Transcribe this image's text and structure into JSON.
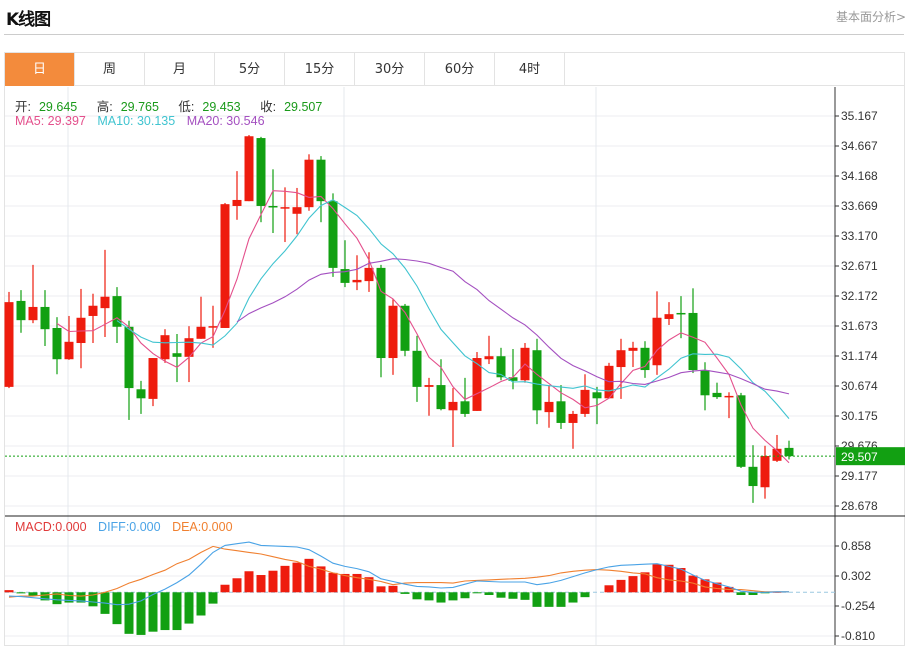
{
  "header": {
    "title": "K线图",
    "link": "基本面分析>"
  },
  "tabs": [
    {
      "label": "日",
      "active": true
    },
    {
      "label": "周",
      "active": false
    },
    {
      "label": "月",
      "active": false
    },
    {
      "label": "5分",
      "active": false
    },
    {
      "label": "15分",
      "active": false
    },
    {
      "label": "30分",
      "active": false
    },
    {
      "label": "60分",
      "active": false
    },
    {
      "label": "4时",
      "active": false
    }
  ],
  "ohlc_legend": {
    "open_label": "开:",
    "open": "29.645",
    "high_label": "高:",
    "high": "29.765",
    "low_label": "低:",
    "low": "29.453",
    "close_label": "收:",
    "close": "29.507"
  },
  "ma_legend": {
    "ma5": "MA5: 29.397",
    "ma10": "MA10: 30.135",
    "ma20": "MA20: 30.546"
  },
  "macd_legend": {
    "macd": "MACD:0.000",
    "diff": "DIFF:0.000",
    "dea": "DEA:0.000"
  },
  "colors": {
    "up": "#ee1c0e",
    "down": "#12a012",
    "ma5": "#e4508c",
    "ma10": "#40c4d0",
    "ma20": "#a450c0",
    "diff": "#4aa3e6",
    "dea": "#f08030",
    "active_tab": "#f38b3c",
    "last_price_bg": "#12a012"
  },
  "chart_data": [
    {
      "type": "candlestick",
      "title": "",
      "price_ticks": [
        "35.167",
        "34.667",
        "34.168",
        "33.669",
        "33.170",
        "32.671",
        "32.172",
        "31.673",
        "31.174",
        "30.674",
        "30.175",
        "29.676",
        "29.177",
        "28.678"
      ],
      "ylim": [
        28.678,
        35.167
      ],
      "grid": true,
      "last_price": "29.507",
      "ma_periods": [
        5,
        10,
        20
      ],
      "candles_ohlc": [
        [
          30.66,
          32.24,
          30.64,
          32.07
        ],
        [
          32.09,
          32.27,
          31.56,
          31.77
        ],
        [
          31.77,
          32.69,
          31.72,
          31.99
        ],
        [
          31.99,
          32.27,
          31.34,
          31.62
        ],
        [
          31.64,
          31.82,
          30.87,
          31.12
        ],
        [
          31.12,
          31.84,
          31.11,
          31.41
        ],
        [
          31.39,
          32.29,
          30.97,
          31.81
        ],
        [
          31.84,
          32.21,
          31.39,
          32.01
        ],
        [
          31.97,
          32.94,
          31.49,
          32.16
        ],
        [
          32.17,
          32.32,
          31.39,
          31.66
        ],
        [
          31.66,
          31.76,
          30.11,
          30.64
        ],
        [
          30.62,
          30.76,
          30.21,
          30.47
        ],
        [
          30.46,
          31.14,
          30.34,
          31.14
        ],
        [
          31.12,
          31.62,
          31.06,
          31.52
        ],
        [
          31.22,
          31.54,
          30.74,
          31.16
        ],
        [
          31.16,
          31.67,
          30.74,
          31.47
        ],
        [
          31.46,
          32.16,
          31.46,
          31.66
        ],
        [
          31.66,
          32.01,
          31.31,
          31.67
        ],
        [
          31.64,
          33.72,
          31.64,
          33.7
        ],
        [
          33.67,
          34.25,
          33.44,
          33.77
        ],
        [
          33.75,
          34.85,
          33.75,
          34.83
        ],
        [
          34.8,
          34.82,
          33.4,
          33.67
        ],
        [
          33.67,
          34.28,
          33.22,
          33.65
        ],
        [
          33.64,
          33.98,
          33.07,
          33.65
        ],
        [
          33.54,
          33.97,
          33.2,
          33.65
        ],
        [
          33.65,
          34.53,
          33.59,
          34.44
        ],
        [
          34.44,
          34.5,
          33.4,
          33.75
        ],
        [
          33.75,
          33.88,
          32.49,
          32.64
        ],
        [
          32.62,
          33.1,
          32.32,
          32.39
        ],
        [
          32.4,
          32.85,
          32.27,
          32.44
        ],
        [
          32.42,
          32.9,
          32.24,
          32.64
        ],
        [
          32.64,
          32.69,
          30.82,
          31.14
        ],
        [
          31.14,
          32.12,
          30.86,
          32.01
        ],
        [
          32.01,
          32.04,
          31.17,
          31.26
        ],
        [
          31.26,
          31.51,
          30.41,
          30.66
        ],
        [
          30.66,
          30.81,
          30.18,
          30.69
        ],
        [
          30.69,
          31.12,
          30.27,
          30.29
        ],
        [
          30.27,
          30.64,
          29.66,
          30.41
        ],
        [
          30.42,
          30.81,
          30.16,
          30.21
        ],
        [
          30.26,
          31.24,
          30.26,
          31.14
        ],
        [
          31.12,
          31.51,
          31.04,
          31.17
        ],
        [
          31.17,
          31.31,
          30.77,
          30.82
        ],
        [
          30.82,
          31.29,
          30.62,
          30.76
        ],
        [
          30.77,
          31.39,
          30.73,
          31.31
        ],
        [
          31.27,
          31.46,
          30.04,
          30.27
        ],
        [
          30.24,
          30.69,
          29.98,
          30.41
        ],
        [
          30.42,
          30.69,
          29.96,
          30.06
        ],
        [
          30.06,
          30.26,
          29.63,
          30.21
        ],
        [
          30.21,
          30.87,
          30.16,
          30.61
        ],
        [
          30.57,
          30.66,
          30.04,
          30.47
        ],
        [
          30.47,
          31.06,
          30.47,
          31.01
        ],
        [
          30.99,
          31.46,
          30.46,
          31.27
        ],
        [
          31.26,
          31.41,
          30.99,
          31.31
        ],
        [
          31.31,
          31.42,
          30.81,
          30.94
        ],
        [
          31.02,
          32.25,
          30.86,
          31.81
        ],
        [
          31.79,
          32.07,
          31.69,
          31.87
        ],
        [
          31.89,
          32.17,
          31.47,
          31.87
        ],
        [
          31.89,
          32.3,
          30.89,
          30.94
        ],
        [
          30.94,
          31.07,
          30.27,
          30.52
        ],
        [
          30.56,
          30.73,
          30.46,
          30.49
        ],
        [
          30.49,
          30.57,
          30.14,
          30.51
        ],
        [
          30.52,
          30.56,
          29.31,
          29.33
        ],
        [
          29.33,
          29.69,
          28.73,
          29.01
        ],
        [
          28.99,
          29.68,
          28.8,
          29.51
        ],
        [
          29.43,
          29.86,
          29.41,
          29.63
        ],
        [
          29.645,
          29.765,
          29.453,
          29.507
        ]
      ]
    },
    {
      "type": "bar+line",
      "title": "",
      "ticks": [
        "0.858",
        "0.302",
        "-0.254",
        "-0.810"
      ],
      "ylim": [
        -0.81,
        0.858
      ],
      "macd": [
        0.04,
        -0.02,
        -0.06,
        -0.15,
        -0.22,
        -0.19,
        -0.19,
        -0.26,
        -0.4,
        -0.59,
        -0.77,
        -0.79,
        -0.73,
        -0.7,
        -0.7,
        -0.58,
        -0.43,
        -0.21,
        0.14,
        0.26,
        0.39,
        0.32,
        0.4,
        0.49,
        0.55,
        0.62,
        0.48,
        0.36,
        0.34,
        0.34,
        0.28,
        0.11,
        0.12,
        -0.03,
        -0.13,
        -0.15,
        -0.19,
        -0.15,
        -0.11,
        -0.01,
        -0.05,
        -0.1,
        -0.12,
        -0.14,
        -0.27,
        -0.27,
        -0.27,
        -0.19,
        -0.09,
        0,
        0.13,
        0.23,
        0.3,
        0.37,
        0.52,
        0.51,
        0.45,
        0.31,
        0.24,
        0.18,
        0.1,
        -0.05,
        -0.05,
        -0.01,
        0.01,
        0
      ],
      "diff": [
        -0.07,
        -0.08,
        -0.1,
        -0.12,
        -0.14,
        -0.15,
        -0.16,
        -0.18,
        -0.2,
        -0.23,
        -0.22,
        -0.16,
        -0.04,
        0.06,
        0.18,
        0.32,
        0.52,
        0.74,
        0.87,
        0.9,
        0.93,
        0.87,
        0.86,
        0.85,
        0.84,
        0.79,
        0.67,
        0.54,
        0.48,
        0.44,
        0.38,
        0.25,
        0.2,
        0.15,
        0.11,
        0.1,
        0.08,
        0.09,
        0.15,
        0.21,
        0.2,
        0.19,
        0.19,
        0.19,
        0.14,
        0.17,
        0.22,
        0.29,
        0.36,
        0.42,
        0.47,
        0.5,
        0.51,
        0.52,
        0.53,
        0.48,
        0.43,
        0.32,
        0.22,
        0.16,
        0.1,
        0.02,
        0.0,
        0.0,
        0.01,
        0.01
      ],
      "dea": [
        -0.09,
        -0.07,
        -0.07,
        -0.05,
        -0.03,
        -0.06,
        -0.07,
        -0.05,
        0.0,
        0.07,
        0.17,
        0.24,
        0.33,
        0.41,
        0.53,
        0.61,
        0.74,
        0.85,
        0.8,
        0.77,
        0.74,
        0.71,
        0.66,
        0.61,
        0.57,
        0.48,
        0.43,
        0.36,
        0.31,
        0.27,
        0.24,
        0.2,
        0.14,
        0.17,
        0.18,
        0.18,
        0.18,
        0.17,
        0.21,
        0.22,
        0.23,
        0.24,
        0.25,
        0.26,
        0.28,
        0.31,
        0.36,
        0.39,
        0.41,
        0.42,
        0.41,
        0.39,
        0.36,
        0.34,
        0.27,
        0.23,
        0.21,
        0.17,
        0.1,
        0.07,
        0.05,
        0.05,
        0.03,
        0.01,
        0.01,
        0.01
      ]
    }
  ]
}
